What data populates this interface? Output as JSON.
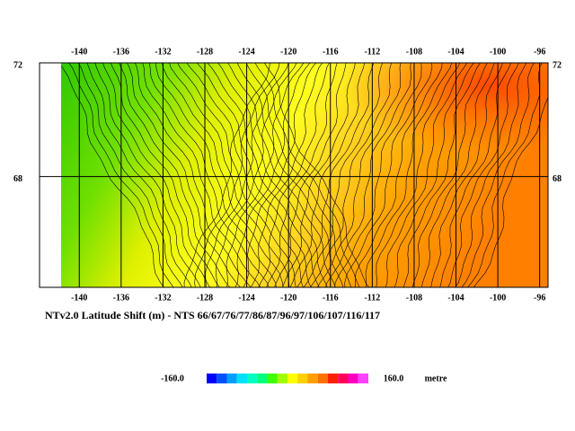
{
  "map": {
    "title": "NTv2.0 Latitude Shift (m) - NTS 66/67/76/77/86/87/96/97/106/107/116/117",
    "xlim": [
      -143.8,
      -95.2
    ],
    "ylim": [
      64.1,
      72
    ],
    "xticks": [
      -140,
      -136,
      -132,
      -128,
      -124,
      -120,
      -116,
      -112,
      -108,
      -104,
      -100,
      -96
    ],
    "yticks": [
      68,
      72
    ],
    "colorbar": {
      "min": {
        "value": -160,
        "label": "-160.0"
      },
      "max": {
        "value": 160,
        "label": "160.0"
      },
      "unit": "metre",
      "colors": [
        "#0000ff",
        "#0050ff",
        "#00a0ff",
        "#00e0ff",
        "#00ffc0",
        "#00ff80",
        "#40ff00",
        "#a0ff00",
        "#ffff00",
        "#ffd000",
        "#ffa000",
        "#ff7000",
        "#ff2000",
        "#ff0060",
        "#ff00c0",
        "#ff40ff"
      ]
    }
  }
}
